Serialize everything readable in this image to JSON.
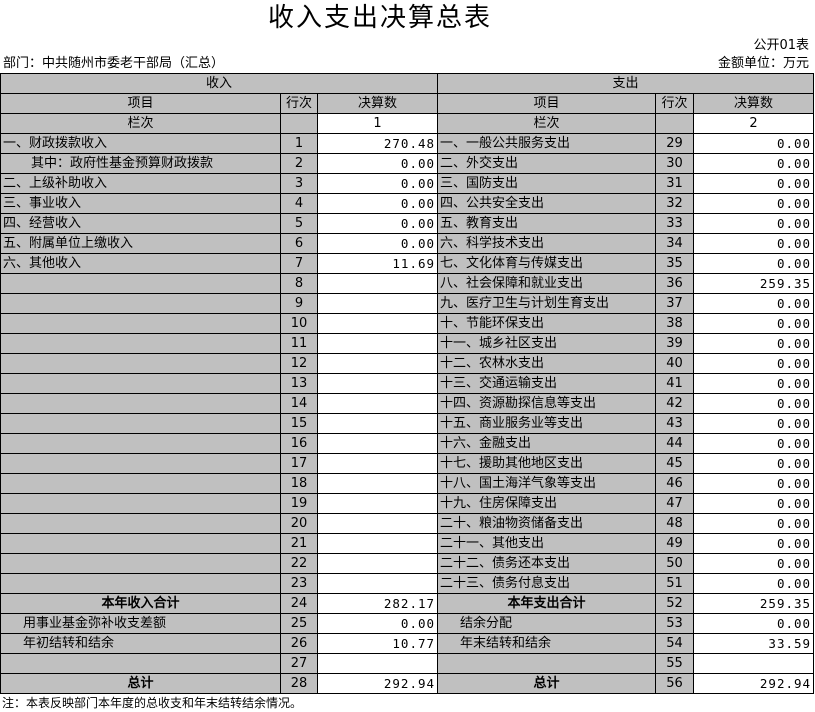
{
  "title": "收入支出决算总表",
  "form_no": "公开01表",
  "department": "部门：中共随州市委老干部局（汇总）",
  "unit": "金额单位：万元",
  "income_header": "收入",
  "expense_header": "支出",
  "col_headers": [
    "项目",
    "行次",
    "决算数",
    "项目",
    "行次",
    "决算数"
  ],
  "index_row": {
    "income_label": "栏次",
    "income_no": 1,
    "expense_label": "栏次",
    "expense_no": 2
  },
  "rows": [
    [
      "一、财政拨款收入",
      1,
      "270.48",
      "一、一般公共服务支出",
      29,
      "0.00"
    ],
    [
      "其中：政府性基金预算财政拨款",
      2,
      "0.00",
      "二、外交支出",
      30,
      "0.00"
    ],
    [
      "二、上级补助收入",
      3,
      "0.00",
      "三、国防支出",
      31,
      "0.00"
    ],
    [
      "三、事业收入",
      4,
      "0.00",
      "四、公共安全支出",
      32,
      "0.00"
    ],
    [
      "四、经营收入",
      5,
      "0.00",
      "五、教育支出",
      33,
      "0.00"
    ],
    [
      "五、附属单位上缴收入",
      6,
      "0.00",
      "六、科学技术支出",
      34,
      "0.00"
    ],
    [
      "六、其他收入",
      7,
      "11.69",
      "七、文化体育与传媒支出",
      35,
      "0.00"
    ],
    [
      null,
      8,
      null,
      "八、社会保障和就业支出",
      36,
      "259.35"
    ],
    [
      null,
      9,
      null,
      "九、医疗卫生与计划生育支出",
      37,
      "0.00"
    ],
    [
      null,
      10,
      null,
      "十、节能环保支出",
      38,
      "0.00"
    ],
    [
      null,
      11,
      null,
      "十一、城乡社区支出",
      39,
      "0.00"
    ],
    [
      null,
      12,
      null,
      "十二、农林水支出",
      40,
      "0.00"
    ],
    [
      null,
      13,
      null,
      "十三、交通运输支出",
      41,
      "0.00"
    ],
    [
      null,
      14,
      null,
      "十四、资源勘探信息等支出",
      42,
      "0.00"
    ],
    [
      null,
      15,
      null,
      "十五、商业服务业等支出",
      43,
      "0.00"
    ],
    [
      null,
      16,
      null,
      "十六、金融支出",
      44,
      "0.00"
    ],
    [
      null,
      17,
      null,
      "十七、援助其他地区支出",
      45,
      "0.00"
    ],
    [
      null,
      18,
      null,
      "十八、国土海洋气象等支出",
      46,
      "0.00"
    ],
    [
      null,
      19,
      null,
      "十九、住房保障支出",
      47,
      "0.00"
    ],
    [
      null,
      20,
      null,
      "二十、粮油物资储备支出",
      48,
      "0.00"
    ],
    [
      null,
      21,
      null,
      "二十一、其他支出",
      49,
      "0.00"
    ],
    [
      null,
      22,
      null,
      "二十二、债务还本支出",
      50,
      "0.00"
    ],
    [
      null,
      23,
      null,
      "二十三、债务付息支出",
      51,
      "0.00"
    ],
    [
      "本年收入合计",
      24,
      "282.17",
      "本年支出合计",
      52,
      "259.35"
    ],
    [
      "用事业基金弥补收支差额",
      25,
      "0.00",
      "结余分配",
      53,
      "0.00"
    ],
    [
      "年初结转和结余",
      26,
      "10.77",
      "年末结转和结余",
      54,
      "33.59"
    ],
    [
      null,
      27,
      null,
      null,
      55,
      null
    ],
    [
      "总计",
      28,
      "292.94",
      "总计",
      56,
      "292.94"
    ]
  ],
  "note": "注：本表反映部门本年度的总收支和年末结转结余情况。"
}
